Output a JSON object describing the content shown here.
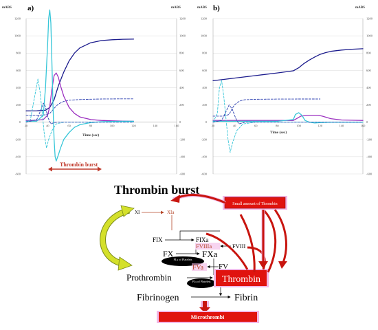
{
  "panels": [
    {
      "id": "a",
      "label": "a)",
      "y_unit_left": "mABS",
      "y_unit_right": "mABS",
      "x_label": "Time (sec)",
      "annotation": "Thrombin burst",
      "annotation_color": "#c0392b"
    },
    {
      "id": "b",
      "label": "b)",
      "y_unit_left": "mABS",
      "y_unit_right": "mABS",
      "x_label": "Time (sec)"
    }
  ],
  "chart_data": [
    {
      "type": "line",
      "panel": "a",
      "xlim": [
        20,
        160
      ],
      "ylim_left": [
        -600,
        1200
      ],
      "ylim_right": [
        -600,
        1200
      ],
      "x_ticks": [
        20,
        40,
        60,
        80,
        100,
        120,
        140,
        160
      ],
      "y_ticks": [
        -600,
        -400,
        -200,
        0,
        200,
        400,
        600,
        800,
        1000,
        1200
      ],
      "grid": true,
      "series": [
        {
          "color": "#1a1a8c",
          "style": "solid",
          "x": [
            20,
            30,
            38,
            42,
            46,
            50,
            55,
            60,
            65,
            70,
            80,
            90,
            100,
            110,
            120
          ],
          "y": [
            130,
            132,
            138,
            170,
            260,
            420,
            580,
            710,
            800,
            860,
            920,
            945,
            955,
            960,
            962
          ]
        },
        {
          "color": "#2b3fb0",
          "style": "dashed",
          "x": [
            20,
            30,
            38,
            42,
            46,
            50,
            55,
            60,
            70,
            80,
            90,
            100,
            110,
            120
          ],
          "y": [
            80,
            80,
            85,
            100,
            160,
            210,
            240,
            255,
            262,
            266,
            268,
            269,
            270,
            270
          ]
        },
        {
          "color": "#9b30c0",
          "style": "solid",
          "x": [
            20,
            30,
            36,
            40,
            42,
            44,
            46,
            48,
            50,
            52,
            55,
            60,
            65,
            70,
            80,
            90,
            100,
            110,
            120
          ],
          "y": [
            20,
            22,
            30,
            80,
            180,
            380,
            540,
            570,
            520,
            420,
            300,
            170,
            100,
            60,
            30,
            20,
            15,
            12,
            10
          ]
        },
        {
          "color": "#36c6d8",
          "style": "solid",
          "x": [
            20,
            30,
            36,
            38,
            40,
            41,
            42,
            43,
            44,
            45,
            46,
            47,
            48,
            50,
            52,
            55,
            60,
            65,
            70,
            80,
            90,
            100,
            110,
            120
          ],
          "y": [
            10,
            12,
            80,
            400,
            900,
            1200,
            1300,
            1150,
            700,
            200,
            -200,
            -400,
            -450,
            -380,
            -300,
            -200,
            -120,
            -60,
            -30,
            -5,
            5,
            8,
            10,
            10
          ]
        },
        {
          "color": "#36c6d8",
          "style": "dashed",
          "x": [
            20,
            24,
            28,
            31,
            33,
            35,
            37,
            39,
            41,
            44,
            48,
            55,
            60,
            70,
            80,
            100,
            120
          ],
          "y": [
            0,
            30,
            300,
            500,
            350,
            100,
            -150,
            -300,
            -200,
            -100,
            -20,
            0,
            0,
            0,
            0,
            0,
            0
          ]
        },
        {
          "color": "#2b3fb0",
          "style": "dashed",
          "x": [
            20,
            30,
            34,
            36,
            38,
            40,
            43,
            46,
            50,
            55,
            60,
            120
          ],
          "y": [
            0,
            30,
            150,
            220,
            180,
            60,
            -20,
            -5,
            0,
            0,
            0,
            0
          ]
        }
      ]
    },
    {
      "type": "line",
      "panel": "b",
      "xlim": [
        20,
        160
      ],
      "ylim_left": [
        -600,
        1200
      ],
      "ylim_right": [
        -600,
        1200
      ],
      "x_ticks": [
        20,
        40,
        60,
        80,
        100,
        120,
        140,
        160
      ],
      "y_ticks": [
        -600,
        -400,
        -200,
        0,
        200,
        400,
        600,
        800,
        1000,
        1200
      ],
      "grid": true,
      "series": [
        {
          "color": "#1a1a8c",
          "style": "solid",
          "x": [
            20,
            40,
            60,
            80,
            95,
            100,
            105,
            110,
            115,
            120,
            125,
            130,
            140,
            150,
            160
          ],
          "y": [
            480,
            510,
            540,
            570,
            595,
            630,
            680,
            720,
            755,
            785,
            805,
            820,
            835,
            845,
            850
          ]
        },
        {
          "color": "#2b3fb0",
          "style": "dashed",
          "x": [
            20,
            30,
            35,
            38,
            40,
            43,
            46,
            50,
            60,
            80,
            100,
            120
          ],
          "y": [
            70,
            70,
            90,
            160,
            200,
            230,
            250,
            260,
            265,
            267,
            268,
            268
          ]
        },
        {
          "color": "#9b30c0",
          "style": "solid",
          "x": [
            20,
            30,
            40,
            60,
            80,
            95,
            98,
            102,
            110,
            118,
            122,
            130,
            140,
            160
          ],
          "y": [
            20,
            20,
            20,
            20,
            20,
            20,
            40,
            70,
            80,
            80,
            70,
            40,
            25,
            20
          ]
        },
        {
          "color": "#36c6d8",
          "style": "solid",
          "x": [
            20,
            30,
            40,
            60,
            80,
            95,
            97,
            100,
            103,
            106,
            110,
            115,
            120,
            130,
            140,
            160
          ],
          "y": [
            10,
            10,
            10,
            10,
            10,
            30,
            90,
            110,
            80,
            20,
            0,
            -10,
            -5,
            0,
            0,
            0
          ]
        },
        {
          "color": "#36c6d8",
          "style": "dashed",
          "x": [
            20,
            24,
            26,
            28,
            30,
            32,
            34,
            36,
            38,
            42,
            48,
            60,
            160
          ],
          "y": [
            0,
            100,
            400,
            480,
            300,
            50,
            -200,
            -350,
            -250,
            -100,
            -20,
            0,
            0
          ]
        },
        {
          "color": "#2b3fb0",
          "style": "dashed",
          "x": [
            20,
            28,
            32,
            35,
            38,
            41,
            44,
            50,
            60,
            160
          ],
          "y": [
            0,
            20,
            120,
            200,
            150,
            50,
            -20,
            0,
            0,
            0
          ]
        }
      ]
    }
  ],
  "cascade": {
    "title": "Thrombin burst",
    "small_thrombin": "Small amount of Thrombin",
    "xi": "XI",
    "xia": "XIa",
    "fix": "FIX",
    "fixa": "FIXa",
    "fviiia": "FVIIIa",
    "fviii": "FVIII",
    "fx": "FX",
    "fxa": "FXa",
    "pls_1": "PLs of Platelets",
    "fv": "FV",
    "fva": "FVa",
    "prothrombin": "Prothrombin",
    "pls_2": "PLs of Platelets",
    "thrombin": "Thrombin",
    "fibrinogen": "Fibrinogen",
    "fibrin": "Fibrin",
    "microthrombi": "Microthrombi"
  },
  "colors": {
    "red_box": "#e0130f",
    "dark_red": "#8b0000",
    "pink_glow": "#f2b8e6",
    "arrow_yellow": "#d4e02a",
    "cofactor_red": "#b5472a"
  }
}
